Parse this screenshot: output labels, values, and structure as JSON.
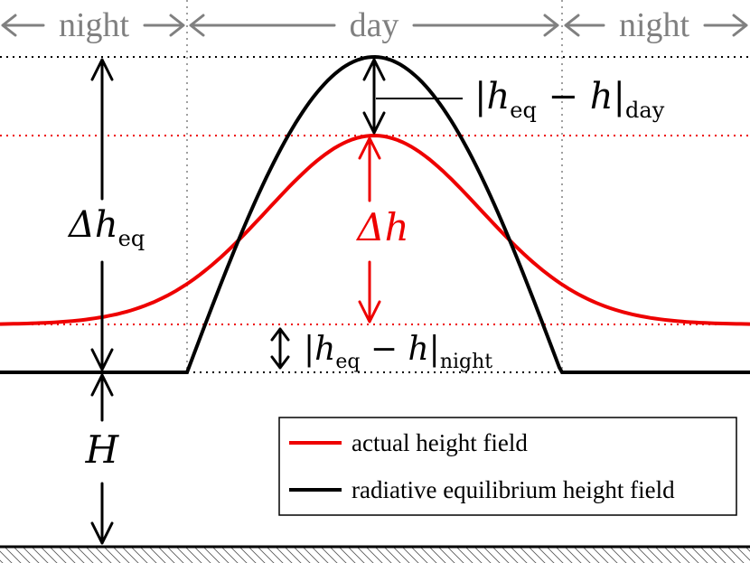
{
  "regions": {
    "left": "night",
    "center": "day",
    "right": "night"
  },
  "labels": {
    "delta_heq_main": "Δh",
    "delta_heq_sub": "eq",
    "delta_h": "Δh",
    "H": "H",
    "abs_day_open": "|h",
    "abs_day_eq": "eq",
    "abs_day_mid": " − h|",
    "abs_day_sub": "day",
    "abs_night_open": "|h",
    "abs_night_eq": "eq",
    "abs_night_mid": " − h|",
    "abs_night_sub": "night"
  },
  "legend": {
    "items": [
      {
        "label": "actual height field",
        "color": "#ee0000"
      },
      {
        "label": "radiative equilibrium height field",
        "color": "#000000"
      }
    ]
  },
  "colors": {
    "actual": "#ee0000",
    "equilibrium": "#000000",
    "guide": "#a0a0a0",
    "region_arrows": "#808080"
  }
}
